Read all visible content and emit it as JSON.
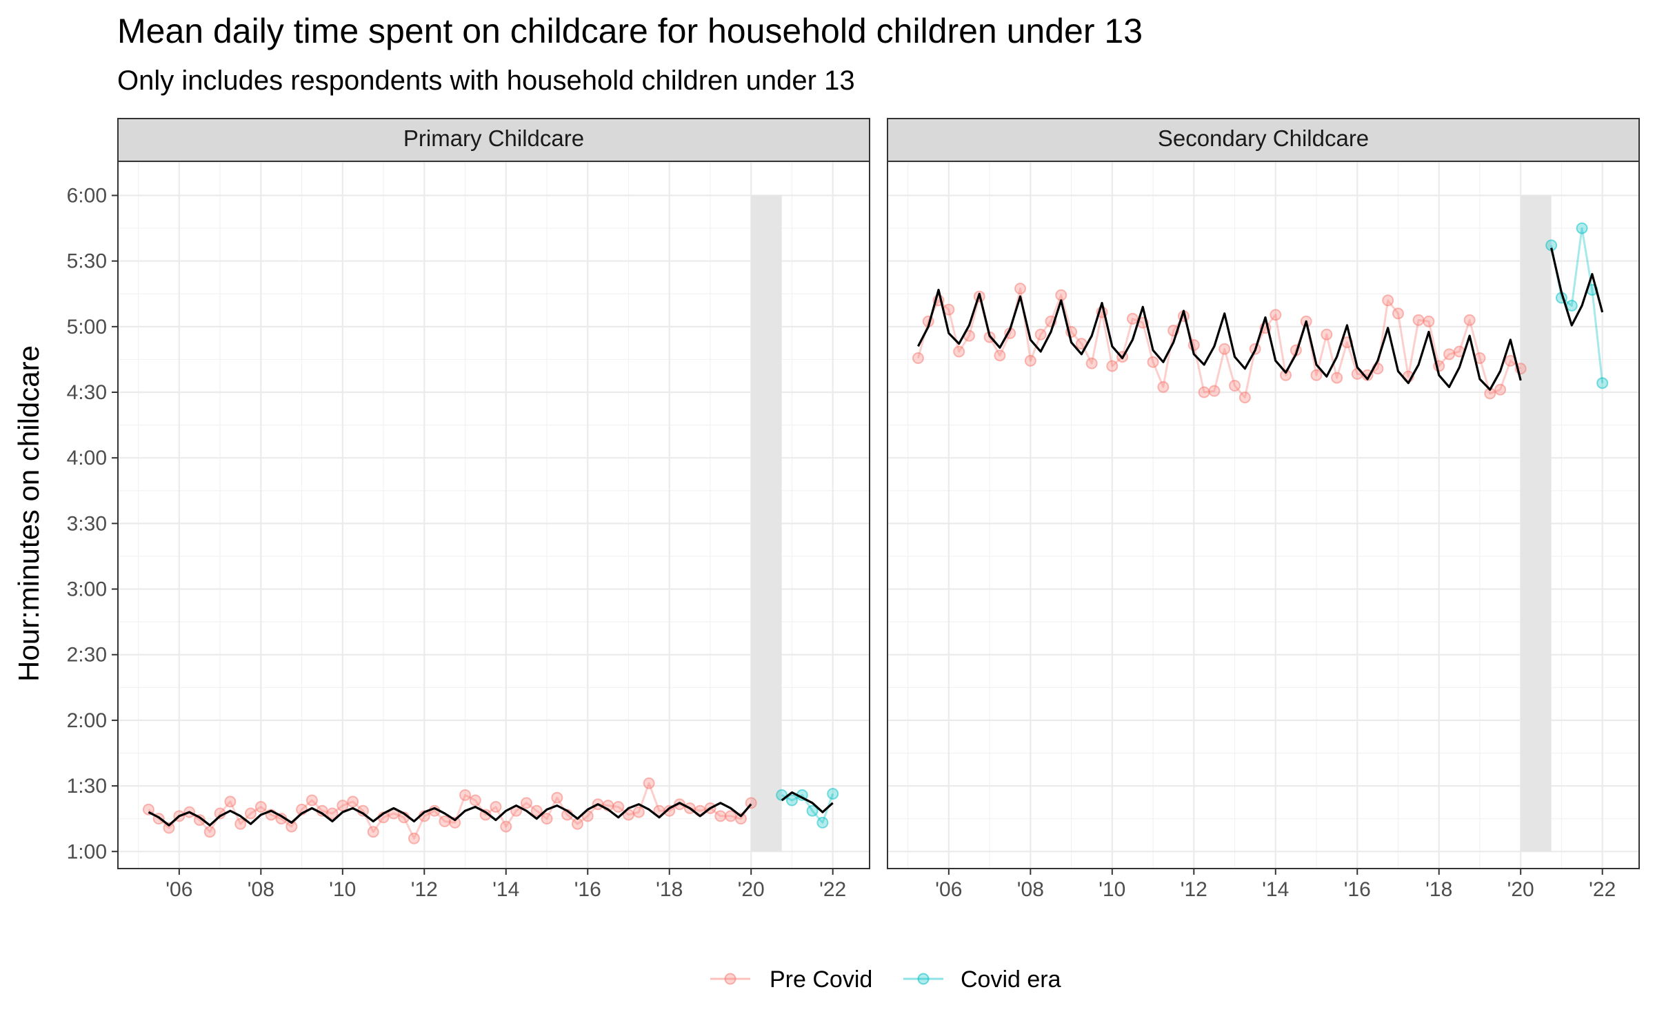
{
  "chart_data": {
    "type": "line",
    "title": "Mean daily time spent on childcare for household children under 13",
    "subtitle": "Only includes respondents with household children under 13",
    "ylabel": "Hour:minutes on childcare",
    "xlabel": "",
    "xlim": [
      2004.5,
      2022.9
    ],
    "ylim": [
      0.87,
      6.26
    ],
    "y_ticks": [
      {
        "v": 1,
        "label": "1:00"
      },
      {
        "v": 1.5,
        "label": "1:30"
      },
      {
        "v": 2,
        "label": "2:00"
      },
      {
        "v": 2.5,
        "label": "2:30"
      },
      {
        "v": 3,
        "label": "3:00"
      },
      {
        "v": 3.5,
        "label": "3:30"
      },
      {
        "v": 4,
        "label": "4:00"
      },
      {
        "v": 4.5,
        "label": "4:30"
      },
      {
        "v": 5,
        "label": "5:00"
      },
      {
        "v": 5.5,
        "label": "5:30"
      },
      {
        "v": 6,
        "label": "6:00"
      }
    ],
    "x_ticks": [
      {
        "v": 2006,
        "label": "'06"
      },
      {
        "v": 2008,
        "label": "'08"
      },
      {
        "v": 2010,
        "label": "'10"
      },
      {
        "v": 2012,
        "label": "'12"
      },
      {
        "v": 2014,
        "label": "'14"
      },
      {
        "v": 2016,
        "label": "'16"
      },
      {
        "v": 2018,
        "label": "'18"
      },
      {
        "v": 2020,
        "label": "'20"
      },
      {
        "v": 2022,
        "label": "'22"
      }
    ],
    "grid": true,
    "legend_position": "bottom",
    "shaded_band": {
      "x": [
        2020.0,
        2020.75
      ],
      "y": [
        1.0,
        6.0
      ],
      "color": "#e5e5e5"
    },
    "colors": {
      "pre": "#f8766d",
      "covid": "#00bfc4",
      "trend": "#000000"
    },
    "legend": [
      {
        "key": "pre",
        "label": "Pre Covid"
      },
      {
        "key": "covid",
        "label": "Covid era"
      }
    ],
    "panels": [
      {
        "name": "Primary Childcare",
        "pre": [
          [
            2005.25,
            1.32
          ],
          [
            2005.5,
            1.25
          ],
          [
            2005.75,
            1.18
          ],
          [
            2006.0,
            1.27
          ],
          [
            2006.25,
            1.3
          ],
          [
            2006.5,
            1.24
          ],
          [
            2006.75,
            1.15
          ],
          [
            2007.0,
            1.29
          ],
          [
            2007.25,
            1.38
          ],
          [
            2007.5,
            1.21
          ],
          [
            2007.75,
            1.29
          ],
          [
            2008.0,
            1.34
          ],
          [
            2008.25,
            1.28
          ],
          [
            2008.5,
            1.25
          ],
          [
            2008.75,
            1.19
          ],
          [
            2009.0,
            1.32
          ],
          [
            2009.25,
            1.39
          ],
          [
            2009.5,
            1.31
          ],
          [
            2009.75,
            1.29
          ],
          [
            2010.0,
            1.35
          ],
          [
            2010.25,
            1.38
          ],
          [
            2010.5,
            1.31
          ],
          [
            2010.75,
            1.15
          ],
          [
            2011.0,
            1.26
          ],
          [
            2011.25,
            1.29
          ],
          [
            2011.5,
            1.26
          ],
          [
            2011.75,
            1.1
          ],
          [
            2012.0,
            1.27
          ],
          [
            2012.25,
            1.31
          ],
          [
            2012.5,
            1.23
          ],
          [
            2012.75,
            1.22
          ],
          [
            2013.0,
            1.43
          ],
          [
            2013.25,
            1.39
          ],
          [
            2013.5,
            1.28
          ],
          [
            2013.75,
            1.34
          ],
          [
            2014.0,
            1.19
          ],
          [
            2014.25,
            1.31
          ],
          [
            2014.5,
            1.37
          ],
          [
            2014.75,
            1.31
          ],
          [
            2015.0,
            1.25
          ],
          [
            2015.25,
            1.41
          ],
          [
            2015.5,
            1.28
          ],
          [
            2015.75,
            1.21
          ],
          [
            2016.0,
            1.27
          ],
          [
            2016.25,
            1.36
          ],
          [
            2016.5,
            1.35
          ],
          [
            2016.75,
            1.34
          ],
          [
            2017.0,
            1.28
          ],
          [
            2017.25,
            1.3
          ],
          [
            2017.5,
            1.52
          ],
          [
            2017.75,
            1.31
          ],
          [
            2018.0,
            1.31
          ],
          [
            2018.25,
            1.36
          ],
          [
            2018.5,
            1.33
          ],
          [
            2018.75,
            1.31
          ],
          [
            2019.0,
            1.33
          ],
          [
            2019.25,
            1.27
          ],
          [
            2019.5,
            1.27
          ],
          [
            2019.75,
            1.25
          ],
          [
            2020.0,
            1.37
          ]
        ],
        "covid": [
          [
            2020.75,
            1.43
          ],
          [
            2021.0,
            1.39
          ],
          [
            2021.25,
            1.43
          ],
          [
            2021.5,
            1.31
          ],
          [
            2021.75,
            1.22
          ],
          [
            2022.0,
            1.44
          ]
        ],
        "trend_pre": [
          [
            2005.25,
            1.3
          ],
          [
            2005.5,
            1.26
          ],
          [
            2005.75,
            1.2
          ],
          [
            2006.0,
            1.27
          ],
          [
            2006.25,
            1.3
          ],
          [
            2006.5,
            1.26
          ],
          [
            2006.75,
            1.2
          ],
          [
            2007.0,
            1.27
          ],
          [
            2007.25,
            1.31
          ],
          [
            2007.5,
            1.27
          ],
          [
            2007.75,
            1.21
          ],
          [
            2008.0,
            1.28
          ],
          [
            2008.25,
            1.31
          ],
          [
            2008.5,
            1.27
          ],
          [
            2008.75,
            1.22
          ],
          [
            2009.0,
            1.29
          ],
          [
            2009.25,
            1.33
          ],
          [
            2009.5,
            1.29
          ],
          [
            2009.75,
            1.23
          ],
          [
            2010.0,
            1.3
          ],
          [
            2010.25,
            1.33
          ],
          [
            2010.5,
            1.29
          ],
          [
            2010.75,
            1.23
          ],
          [
            2011.0,
            1.29
          ],
          [
            2011.25,
            1.33
          ],
          [
            2011.5,
            1.29
          ],
          [
            2011.75,
            1.23
          ],
          [
            2012.0,
            1.3
          ],
          [
            2012.25,
            1.33
          ],
          [
            2012.5,
            1.29
          ],
          [
            2012.75,
            1.24
          ],
          [
            2013.0,
            1.31
          ],
          [
            2013.25,
            1.34
          ],
          [
            2013.5,
            1.3
          ],
          [
            2013.75,
            1.24
          ],
          [
            2014.0,
            1.31
          ],
          [
            2014.25,
            1.35
          ],
          [
            2014.5,
            1.31
          ],
          [
            2014.75,
            1.25
          ],
          [
            2015.0,
            1.32
          ],
          [
            2015.25,
            1.35
          ],
          [
            2015.5,
            1.31
          ],
          [
            2015.75,
            1.25
          ],
          [
            2016.0,
            1.32
          ],
          [
            2016.25,
            1.36
          ],
          [
            2016.5,
            1.32
          ],
          [
            2016.75,
            1.26
          ],
          [
            2017.0,
            1.33
          ],
          [
            2017.25,
            1.36
          ],
          [
            2017.5,
            1.32
          ],
          [
            2017.75,
            1.26
          ],
          [
            2018.0,
            1.33
          ],
          [
            2018.25,
            1.37
          ],
          [
            2018.5,
            1.33
          ],
          [
            2018.75,
            1.27
          ],
          [
            2019.0,
            1.33
          ],
          [
            2019.25,
            1.37
          ],
          [
            2019.5,
            1.33
          ],
          [
            2019.75,
            1.27
          ],
          [
            2020.0,
            1.36
          ]
        ],
        "trend_covid": [
          [
            2020.75,
            1.39
          ],
          [
            2021.0,
            1.45
          ],
          [
            2021.25,
            1.41
          ],
          [
            2021.5,
            1.37
          ],
          [
            2021.75,
            1.3
          ],
          [
            2022.0,
            1.37
          ]
        ]
      },
      {
        "name": "Secondary Childcare",
        "pre": [
          [
            2005.25,
            4.76
          ],
          [
            2005.5,
            5.04
          ],
          [
            2005.75,
            5.2
          ],
          [
            2006.0,
            5.13
          ],
          [
            2006.25,
            4.81
          ],
          [
            2006.5,
            4.93
          ],
          [
            2006.75,
            5.23
          ],
          [
            2007.0,
            4.92
          ],
          [
            2007.25,
            4.78
          ],
          [
            2007.5,
            4.95
          ],
          [
            2007.75,
            5.29
          ],
          [
            2008.0,
            4.74
          ],
          [
            2008.25,
            4.94
          ],
          [
            2008.5,
            5.04
          ],
          [
            2008.75,
            5.24
          ],
          [
            2009.0,
            4.96
          ],
          [
            2009.25,
            4.87
          ],
          [
            2009.5,
            4.72
          ],
          [
            2009.75,
            5.11
          ],
          [
            2010.0,
            4.7
          ],
          [
            2010.25,
            4.77
          ],
          [
            2010.5,
            5.06
          ],
          [
            2010.75,
            5.03
          ],
          [
            2011.0,
            4.73
          ],
          [
            2011.25,
            4.54
          ],
          [
            2011.5,
            4.97
          ],
          [
            2011.75,
            5.08
          ],
          [
            2012.0,
            4.86
          ],
          [
            2012.25,
            4.5
          ],
          [
            2012.5,
            4.51
          ],
          [
            2012.75,
            4.83
          ],
          [
            2013.0,
            4.55
          ],
          [
            2013.25,
            4.46
          ],
          [
            2013.5,
            4.83
          ],
          [
            2013.75,
            4.99
          ],
          [
            2014.0,
            5.09
          ],
          [
            2014.25,
            4.63
          ],
          [
            2014.5,
            4.82
          ],
          [
            2014.75,
            5.04
          ],
          [
            2015.0,
            4.63
          ],
          [
            2015.25,
            4.94
          ],
          [
            2015.5,
            4.61
          ],
          [
            2015.75,
            4.88
          ],
          [
            2016.0,
            4.64
          ],
          [
            2016.25,
            4.63
          ],
          [
            2016.5,
            4.68
          ],
          [
            2016.75,
            5.2
          ],
          [
            2017.0,
            5.1
          ],
          [
            2017.25,
            4.62
          ],
          [
            2017.5,
            5.05
          ],
          [
            2017.75,
            5.04
          ],
          [
            2018.0,
            4.7
          ],
          [
            2018.25,
            4.79
          ],
          [
            2018.5,
            4.81
          ],
          [
            2018.75,
            5.05
          ],
          [
            2019.0,
            4.76
          ],
          [
            2019.25,
            4.49
          ],
          [
            2019.5,
            4.52
          ],
          [
            2019.75,
            4.74
          ],
          [
            2020.0,
            4.68
          ]
        ],
        "covid": [
          [
            2020.75,
            5.62
          ],
          [
            2021.0,
            5.22
          ],
          [
            2021.25,
            5.16
          ],
          [
            2021.5,
            5.75
          ],
          [
            2021.75,
            5.28
          ],
          [
            2022.0,
            4.57
          ]
        ],
        "trend_pre": [
          [
            2005.25,
            4.85
          ],
          [
            2005.5,
            5.0
          ],
          [
            2005.75,
            5.28
          ],
          [
            2006.0,
            4.95
          ],
          [
            2006.25,
            4.87
          ],
          [
            2006.5,
            5.01
          ],
          [
            2006.75,
            5.25
          ],
          [
            2007.0,
            4.93
          ],
          [
            2007.25,
            4.84
          ],
          [
            2007.5,
            4.98
          ],
          [
            2007.75,
            5.23
          ],
          [
            2008.0,
            4.9
          ],
          [
            2008.25,
            4.81
          ],
          [
            2008.5,
            4.96
          ],
          [
            2008.75,
            5.2
          ],
          [
            2009.0,
            4.88
          ],
          [
            2009.25,
            4.79
          ],
          [
            2009.5,
            4.93
          ],
          [
            2009.75,
            5.18
          ],
          [
            2010.0,
            4.85
          ],
          [
            2010.25,
            4.76
          ],
          [
            2010.5,
            4.9
          ],
          [
            2010.75,
            5.15
          ],
          [
            2011.0,
            4.82
          ],
          [
            2011.25,
            4.73
          ],
          [
            2011.5,
            4.88
          ],
          [
            2011.75,
            5.12
          ],
          [
            2012.0,
            4.79
          ],
          [
            2012.25,
            4.71
          ],
          [
            2012.5,
            4.85
          ],
          [
            2012.75,
            5.1
          ],
          [
            2013.0,
            4.77
          ],
          [
            2013.25,
            4.68
          ],
          [
            2013.5,
            4.82
          ],
          [
            2013.75,
            5.07
          ],
          [
            2014.0,
            4.74
          ],
          [
            2014.25,
            4.65
          ],
          [
            2014.5,
            4.79
          ],
          [
            2014.75,
            5.04
          ],
          [
            2015.0,
            4.71
          ],
          [
            2015.25,
            4.62
          ],
          [
            2015.5,
            4.77
          ],
          [
            2015.75,
            5.01
          ],
          [
            2016.0,
            4.69
          ],
          [
            2016.25,
            4.6
          ],
          [
            2016.5,
            4.74
          ],
          [
            2016.75,
            4.99
          ],
          [
            2017.0,
            4.66
          ],
          [
            2017.25,
            4.57
          ],
          [
            2017.5,
            4.71
          ],
          [
            2017.75,
            4.96
          ],
          [
            2018.0,
            4.63
          ],
          [
            2018.25,
            4.54
          ],
          [
            2018.5,
            4.69
          ],
          [
            2018.75,
            4.93
          ],
          [
            2019.0,
            4.6
          ],
          [
            2019.25,
            4.52
          ],
          [
            2019.5,
            4.66
          ],
          [
            2019.75,
            4.9
          ],
          [
            2020.0,
            4.59
          ]
        ],
        "trend_covid": [
          [
            2020.75,
            5.6
          ],
          [
            2021.0,
            5.26
          ],
          [
            2021.25,
            5.01
          ],
          [
            2021.5,
            5.16
          ],
          [
            2021.75,
            5.4
          ],
          [
            2022.0,
            5.11
          ]
        ]
      }
    ]
  }
}
